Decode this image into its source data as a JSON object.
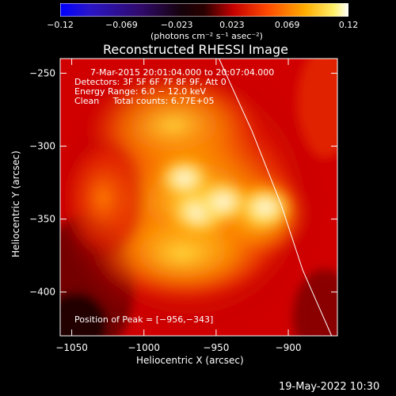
{
  "colorbar": {
    "ticks": [
      -0.12,
      -0.069,
      -0.023,
      0.023,
      0.069,
      0.12
    ],
    "tick_labels": [
      "−0.12",
      "−0.069",
      "−0.023",
      "0.023",
      "0.069",
      "0.12"
    ],
    "unit_label": "(photons cm⁻² s⁻¹ asec⁻²)",
    "range": [
      -0.12,
      0.12
    ]
  },
  "chart_data": {
    "type": "heatmap",
    "title": "Reconstructed RHESSI Image",
    "xlabel": "Heliocentric X (arcsec)",
    "ylabel": "Heliocentric Y (arcsec)",
    "xlim": [
      -1058,
      -866
    ],
    "ylim": [
      -430,
      -240
    ],
    "x_ticks": [
      -1050,
      -1000,
      -950,
      -900
    ],
    "x_tick_labels": [
      "−1050",
      "−1000",
      "−950",
      "−900"
    ],
    "y_ticks": [
      -250,
      -300,
      -350,
      -400
    ],
    "y_tick_labels": [
      "−250",
      "−300",
      "−350",
      "−400"
    ],
    "colormap": "heat (black-red-orange-yellow-white)",
    "peaks": [
      {
        "x": -962,
        "y": -345,
        "value": 0.12
      },
      {
        "x": -945,
        "y": -338,
        "value": 0.11
      },
      {
        "x": -916,
        "y": -342,
        "value": 0.105
      },
      {
        "x": -972,
        "y": -322,
        "value": 0.1
      }
    ],
    "solar_limb": [
      [
        -948,
        -240
      ],
      [
        -925,
        -290
      ],
      [
        -905,
        -340
      ],
      [
        -890,
        -385
      ],
      [
        -870,
        -430
      ]
    ],
    "info_lines": [
      "7-Mar-2015 20:01:04.000 to 20:07:04.000",
      "Detectors: 3F 5F 6F 7F 8F 9F, Att 0",
      "Energy Range: 6.0 − 12.0 keV",
      "Clean     Total counts: 6.77E+05"
    ],
    "peak_position_label": "Position of Peak = [−956,−343]"
  },
  "footer": {
    "date": "19-May-2022 10:30"
  }
}
